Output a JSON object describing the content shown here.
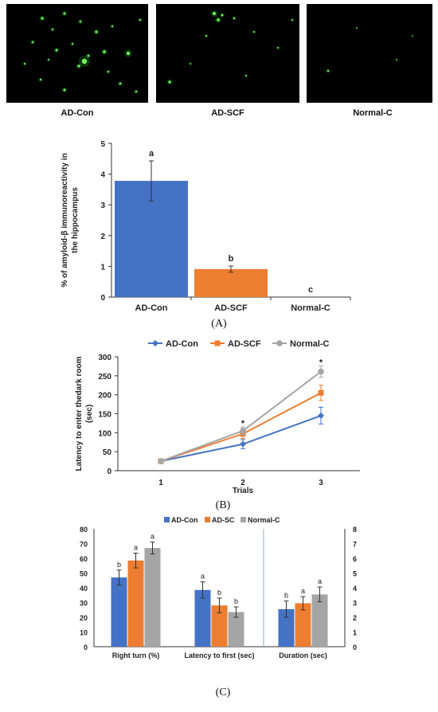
{
  "micrographs": [
    {
      "label": "AD-Con"
    },
    {
      "label": "AD-SCF"
    },
    {
      "label": "Normal-C"
    }
  ],
  "panel_labels": {
    "a": "(A)",
    "b": "(B)",
    "c": "(C)"
  },
  "colors": {
    "blue": "#4472c4",
    "orange": "#ed7d31",
    "gray": "#a5a5a5"
  },
  "chart_data": [
    {
      "type": "bar",
      "panel": "(A)",
      "categories": [
        "AD-Con",
        "AD-SCF",
        "Normal-C"
      ],
      "values": [
        3.78,
        0.91,
        0.0
      ],
      "errors": [
        0.65,
        0.1,
        0.0
      ],
      "sig_letters": [
        "a",
        "b",
        "c"
      ],
      "ylabel_lines": [
        "% of amyloid-β immunoreactivity in",
        "the hippocampus"
      ],
      "ylim": [
        0,
        5
      ],
      "yticks": [
        0,
        1,
        2,
        3,
        4,
        5
      ],
      "colors": [
        "#4472c4",
        "#ed7d31",
        "#a5a5a5"
      ]
    },
    {
      "type": "line",
      "panel": "(B)",
      "x": [
        1,
        2,
        3
      ],
      "series": [
        {
          "name": "AD-Con",
          "values": [
            25,
            70,
            145
          ],
          "errors": [
            3,
            12,
            22
          ],
          "color": "#4472c4",
          "marker": "diamond"
        },
        {
          "name": "AD-SCF",
          "values": [
            25,
            97,
            205
          ],
          "errors": [
            3,
            12,
            20
          ],
          "color": "#ed7d31",
          "marker": "square"
        },
        {
          "name": "Normal-C",
          "values": [
            25,
            105,
            261
          ],
          "errors": [
            3,
            10,
            15
          ],
          "color": "#a5a5a5",
          "marker": "circle"
        }
      ],
      "stars": [
        "",
        "*",
        "*"
      ],
      "xlabel": "Trials",
      "ylabel_lines": [
        "Latency to enter thedark room",
        "(sec)"
      ],
      "ylim": [
        0,
        300
      ],
      "yticks": [
        0,
        50,
        100,
        150,
        200,
        250,
        300
      ],
      "legend": "top"
    },
    {
      "type": "bar",
      "panel": "(C)",
      "categories": [
        "Right turn (%)",
        "Latency to first (sec)",
        "Duration (sec)"
      ],
      "series": [
        {
          "name": "AD-Con",
          "values": [
            47,
            38.5,
            25.5
          ],
          "errors": [
            5,
            5.5,
            5.5
          ],
          "letters": [
            "b",
            "a",
            "b"
          ],
          "color": "#4472c4"
        },
        {
          "name": "AD-SC",
          "values": [
            58.5,
            28,
            29.5
          ],
          "errors": [
            5,
            5,
            4.5
          ],
          "letters": [
            "a",
            "b",
            "a"
          ],
          "color": "#ed7d31"
        },
        {
          "name": "Normal-C",
          "values": [
            67,
            23.5,
            35.5
          ],
          "errors": [
            4,
            3.5,
            5
          ],
          "letters": [
            "a",
            "b",
            "a"
          ],
          "color": "#a5a5a5"
        }
      ],
      "ylim": [
        0,
        80
      ],
      "yticks": [
        0,
        10,
        20,
        30,
        40,
        50,
        60,
        70,
        80
      ],
      "y2lim": [
        0,
        8
      ],
      "y2ticks": [
        0,
        1,
        2,
        3,
        4,
        5,
        6,
        7,
        8
      ],
      "legend": "top"
    }
  ]
}
